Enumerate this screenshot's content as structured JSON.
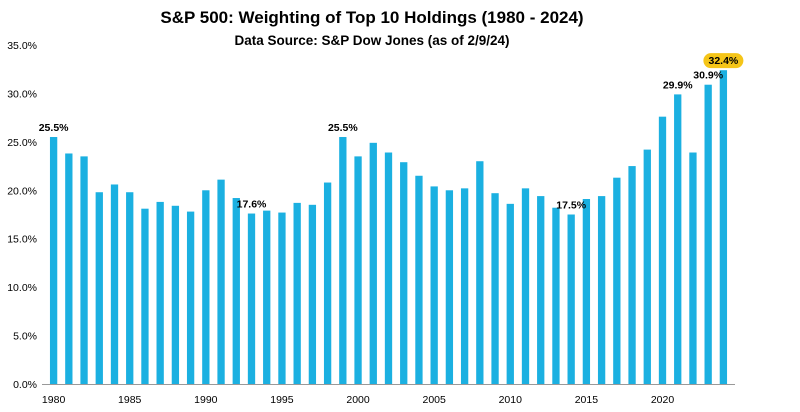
{
  "chart_data": {
    "type": "bar",
    "title": "S&P 500: Weighting of Top 10 Holdings (1980 - 2024)",
    "subtitle": "Data Source: S&P Dow Jones (as of 2/9/24)",
    "x": [
      1980,
      1981,
      1982,
      1983,
      1984,
      1985,
      1986,
      1987,
      1988,
      1989,
      1990,
      1991,
      1992,
      1993,
      1994,
      1995,
      1996,
      1997,
      1998,
      1999,
      2000,
      2001,
      2002,
      2003,
      2004,
      2005,
      2006,
      2007,
      2008,
      2009,
      2010,
      2011,
      2012,
      2013,
      2014,
      2015,
      2016,
      2017,
      2018,
      2019,
      2020,
      2021,
      2022,
      2023,
      2024
    ],
    "values": [
      25.5,
      23.8,
      23.5,
      19.8,
      20.6,
      19.8,
      18.1,
      18.8,
      18.4,
      17.8,
      20.0,
      21.1,
      19.2,
      17.6,
      17.9,
      17.7,
      18.7,
      18.5,
      20.8,
      25.5,
      23.5,
      24.9,
      23.9,
      22.9,
      21.5,
      20.4,
      20.0,
      20.2,
      23.0,
      19.7,
      18.6,
      20.2,
      19.4,
      18.2,
      17.5,
      19.1,
      19.4,
      21.3,
      22.5,
      24.2,
      27.6,
      29.9,
      23.9,
      30.9,
      32.4
    ],
    "x_ticks": [
      "1980",
      "1985",
      "1990",
      "1995",
      "2000",
      "2005",
      "2010",
      "2015",
      "2020"
    ],
    "y_ticks": [
      "0.0%",
      "5.0%",
      "10.0%",
      "15.0%",
      "20.0%",
      "25.0%",
      "30.0%",
      "35.0%"
    ],
    "ylim": [
      0,
      35
    ],
    "bar_color": "#1BB0E1",
    "highlight_color": "#F5C518",
    "annotations": [
      {
        "year": 1980,
        "text": "25.5%"
      },
      {
        "year": 1993,
        "text": "17.6%"
      },
      {
        "year": 1999,
        "text": "25.5%"
      },
      {
        "year": 2014,
        "text": "17.5%"
      },
      {
        "year": 2021,
        "text": "29.9%"
      },
      {
        "year": 2023,
        "text": "30.9%"
      },
      {
        "year": 2024,
        "text": "32.4%",
        "highlight": true
      }
    ],
    "xlabel": "",
    "ylabel": "",
    "grid": false
  }
}
